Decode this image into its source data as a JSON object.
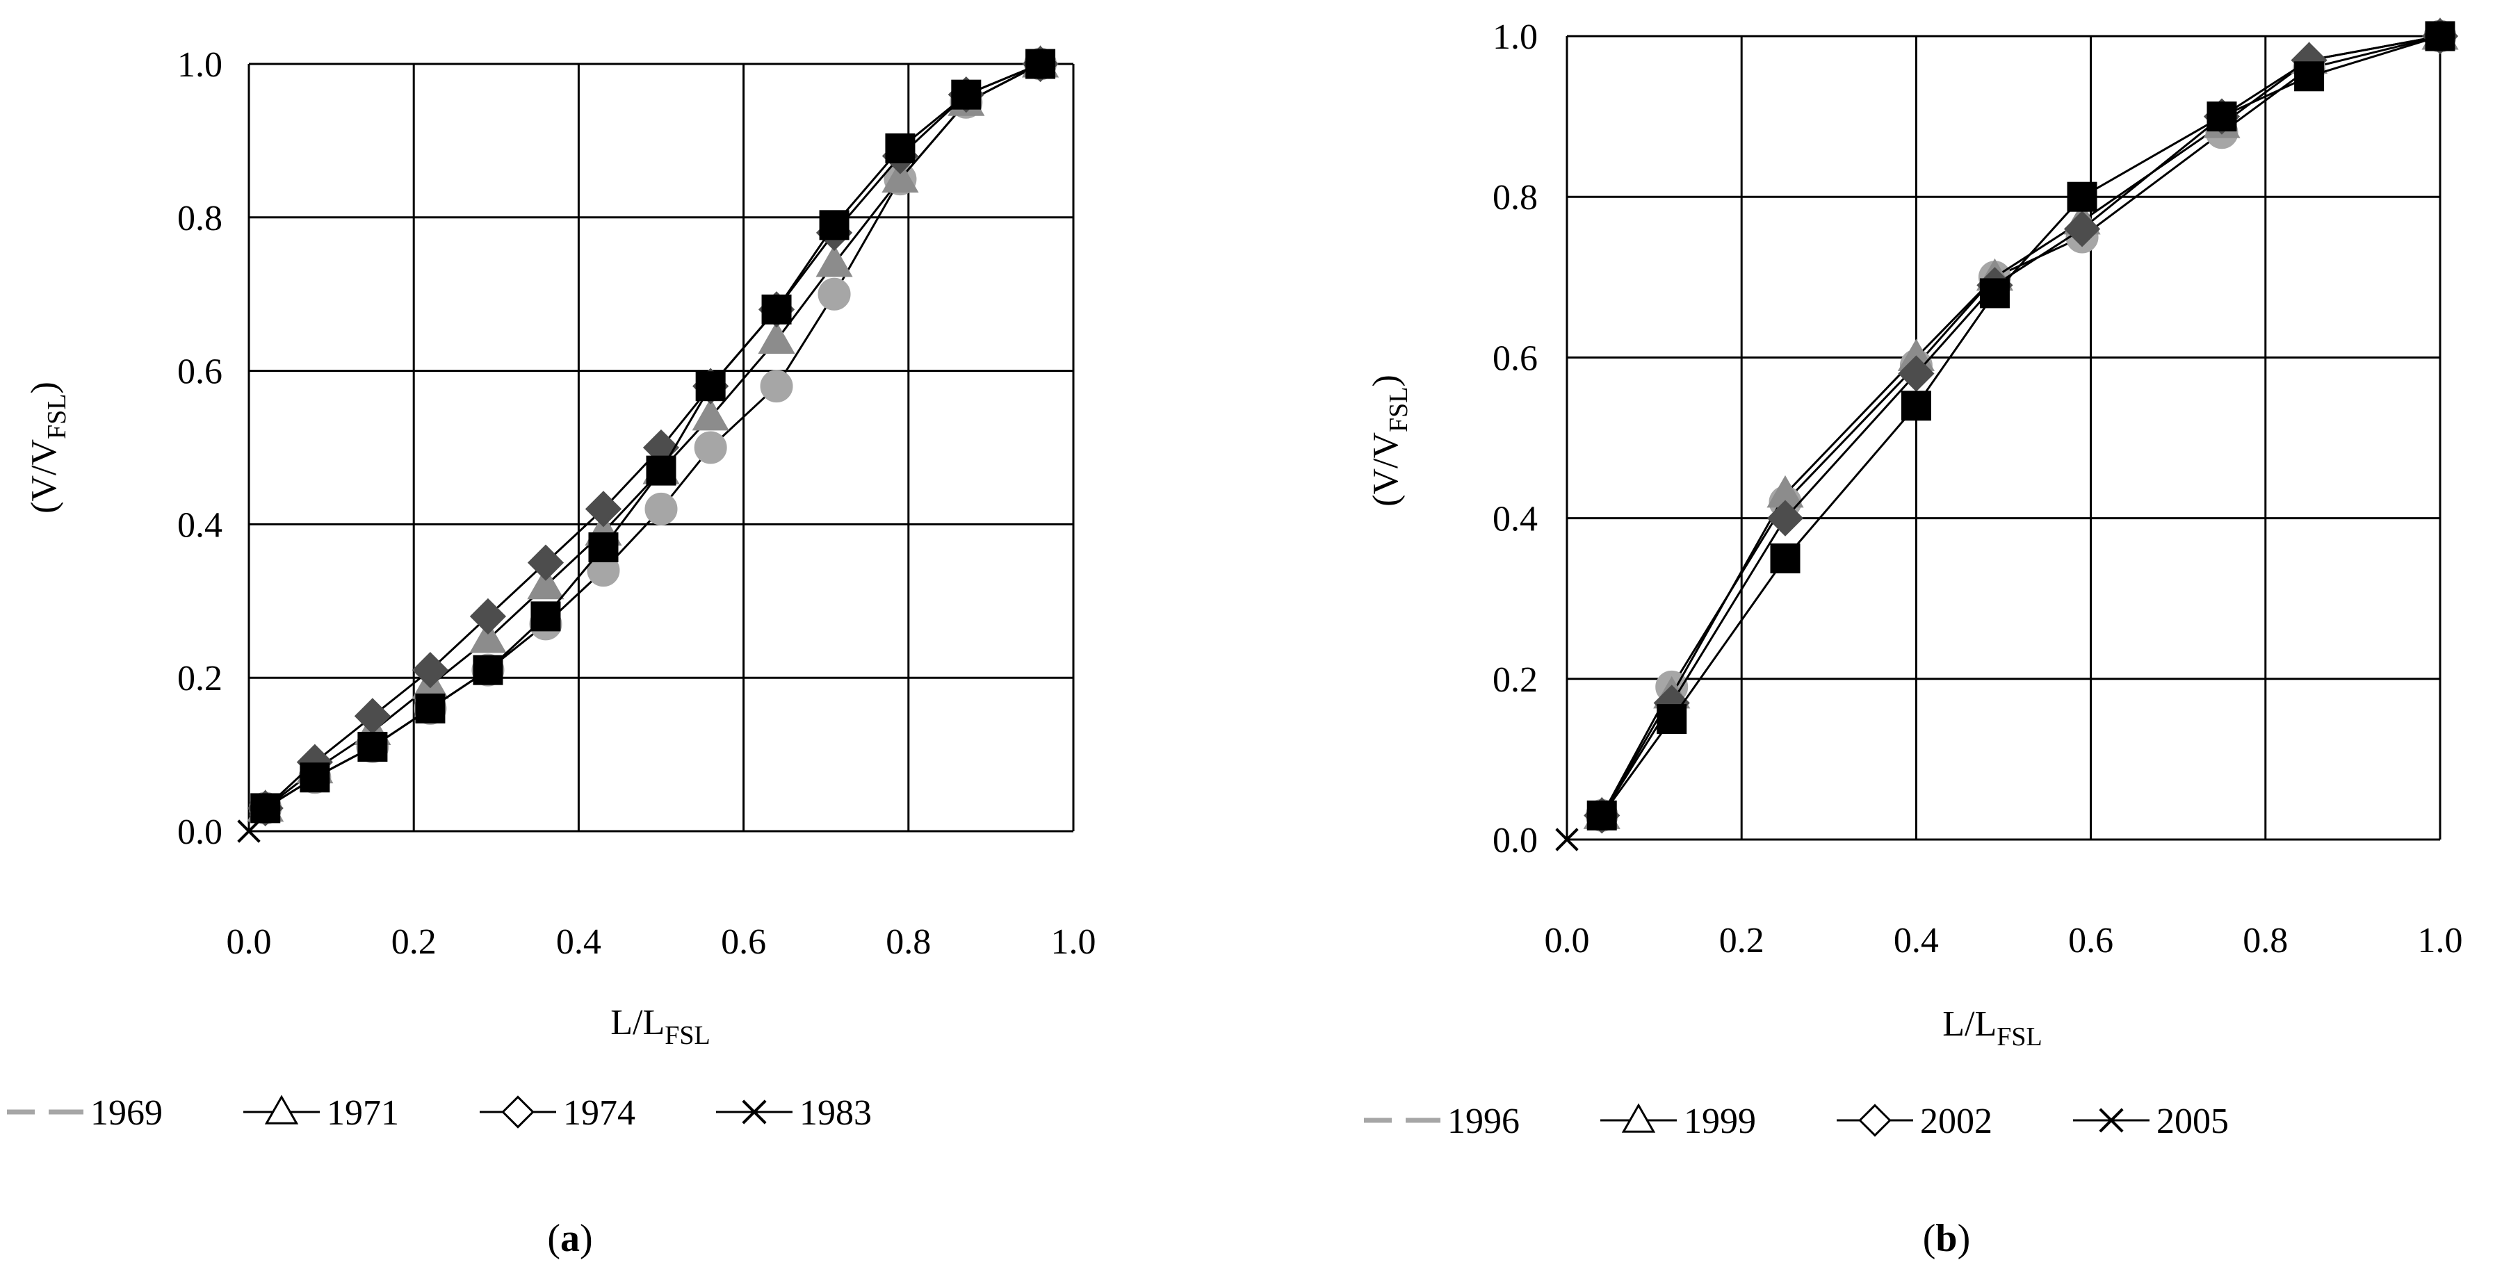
{
  "colors": {
    "axis": "#000000",
    "grid": "#000000",
    "series_1969": "#a6a6a6",
    "series_1971": "#8c8c8c",
    "series_1974": "#4d4d4d",
    "series_1983": "#000000",
    "series_1996": "#a6a6a6",
    "series_1999": "#8c8c8c",
    "series_2002": "#4d4d4d",
    "series_2005": "#000000"
  },
  "chart_data": [
    {
      "type": "line",
      "panel_label_open": "(",
      "panel_label": "a",
      "panel_label_close": ")",
      "xlabel_main": "L/L",
      "xlabel_sub": "FSL",
      "ylabel_main": "(V/V",
      "ylabel_sub": "FSL",
      "ylabel_close": ")",
      "xlim": [
        0,
        1
      ],
      "ylim": [
        0,
        1
      ],
      "x_ticks": [
        "0.0",
        "0.2",
        "0.4",
        "0.6",
        "0.8",
        "1.0"
      ],
      "y_ticks": [
        "0.0",
        "0.2",
        "0.4",
        "0.6",
        "0.8",
        "1.0"
      ],
      "grid": true,
      "legend_position": "bottom",
      "series": [
        {
          "name": "1969",
          "marker": "circle",
          "legend_marker": "dash",
          "points": [
            [
              0.02,
              0.03
            ],
            [
              0.08,
              0.07
            ],
            [
              0.15,
              0.11
            ],
            [
              0.22,
              0.16
            ],
            [
              0.29,
              0.21
            ],
            [
              0.36,
              0.27
            ],
            [
              0.43,
              0.34
            ],
            [
              0.5,
              0.42
            ],
            [
              0.56,
              0.5
            ],
            [
              0.64,
              0.58
            ],
            [
              0.71,
              0.7
            ],
            [
              0.79,
              0.85
            ],
            [
              0.87,
              0.95
            ],
            [
              0.96,
              1.0
            ]
          ]
        },
        {
          "name": "1971",
          "marker": "triangle",
          "legend_marker": "triangle",
          "points": [
            [
              0.02,
              0.03
            ],
            [
              0.08,
              0.08
            ],
            [
              0.15,
              0.13
            ],
            [
              0.22,
              0.19
            ],
            [
              0.29,
              0.25
            ],
            [
              0.36,
              0.32
            ],
            [
              0.43,
              0.39
            ],
            [
              0.5,
              0.47
            ],
            [
              0.56,
              0.54
            ],
            [
              0.64,
              0.64
            ],
            [
              0.71,
              0.74
            ],
            [
              0.79,
              0.85
            ],
            [
              0.87,
              0.95
            ],
            [
              0.96,
              1.0
            ]
          ]
        },
        {
          "name": "1974",
          "marker": "diamond",
          "legend_marker": "diamond",
          "points": [
            [
              0.02,
              0.03
            ],
            [
              0.08,
              0.09
            ],
            [
              0.15,
              0.15
            ],
            [
              0.22,
              0.21
            ],
            [
              0.29,
              0.28
            ],
            [
              0.36,
              0.35
            ],
            [
              0.43,
              0.42
            ],
            [
              0.5,
              0.5
            ],
            [
              0.56,
              0.58
            ],
            [
              0.64,
              0.68
            ],
            [
              0.71,
              0.78
            ],
            [
              0.79,
              0.88
            ],
            [
              0.87,
              0.96
            ],
            [
              0.96,
              1.0
            ]
          ]
        },
        {
          "name": "1983",
          "marker": "square",
          "legend_marker": "cross",
          "points": [
            [
              0.02,
              0.03
            ],
            [
              0.08,
              0.07
            ],
            [
              0.15,
              0.11
            ],
            [
              0.22,
              0.16
            ],
            [
              0.29,
              0.21
            ],
            [
              0.36,
              0.28
            ],
            [
              0.43,
              0.37
            ],
            [
              0.5,
              0.47
            ],
            [
              0.56,
              0.58
            ],
            [
              0.64,
              0.68
            ],
            [
              0.71,
              0.79
            ],
            [
              0.79,
              0.89
            ],
            [
              0.87,
              0.96
            ],
            [
              0.96,
              1.0
            ]
          ]
        }
      ]
    },
    {
      "type": "line",
      "panel_label_open": "(",
      "panel_label": "b",
      "panel_label_close": ")",
      "xlabel_main": "L/L",
      "xlabel_sub": "FSL",
      "ylabel_main": "(V/V",
      "ylabel_sub": "FSL",
      "ylabel_close": ")",
      "xlim": [
        0,
        1
      ],
      "ylim": [
        0,
        1
      ],
      "x_ticks": [
        "0.0",
        "0.2",
        "0.4",
        "0.6",
        "0.8",
        "1.0"
      ],
      "y_ticks": [
        "0.0",
        "0.2",
        "0.4",
        "0.6",
        "0.8",
        "1.0"
      ],
      "grid": true,
      "legend_position": "bottom",
      "series": [
        {
          "name": "1996",
          "marker": "circle",
          "legend_marker": "dash",
          "points": [
            [
              0.04,
              0.03
            ],
            [
              0.12,
              0.19
            ],
            [
              0.25,
              0.42
            ],
            [
              0.4,
              0.59
            ],
            [
              0.49,
              0.7
            ],
            [
              0.59,
              0.75
            ],
            [
              0.75,
              0.88
            ],
            [
              0.85,
              0.96
            ],
            [
              1.0,
              1.0
            ]
          ]
        },
        {
          "name": "1999",
          "marker": "triangle",
          "legend_marker": "triangle",
          "points": [
            [
              0.04,
              0.03
            ],
            [
              0.12,
              0.18
            ],
            [
              0.25,
              0.43
            ],
            [
              0.4,
              0.6
            ],
            [
              0.49,
              0.7
            ],
            [
              0.59,
              0.77
            ],
            [
              0.75,
              0.89
            ],
            [
              0.85,
              0.97
            ],
            [
              1.0,
              1.0
            ]
          ]
        },
        {
          "name": "2002",
          "marker": "diamond",
          "legend_marker": "diamond",
          "points": [
            [
              0.04,
              0.03
            ],
            [
              0.12,
              0.17
            ],
            [
              0.25,
              0.4
            ],
            [
              0.4,
              0.58
            ],
            [
              0.49,
              0.69
            ],
            [
              0.59,
              0.76
            ],
            [
              0.75,
              0.9
            ],
            [
              0.85,
              0.97
            ],
            [
              1.0,
              1.0
            ]
          ]
        },
        {
          "name": "2005",
          "marker": "square",
          "legend_marker": "cross",
          "points": [
            [
              0.04,
              0.03
            ],
            [
              0.12,
              0.15
            ],
            [
              0.25,
              0.35
            ],
            [
              0.4,
              0.54
            ],
            [
              0.49,
              0.68
            ],
            [
              0.59,
              0.8
            ],
            [
              0.75,
              0.9
            ],
            [
              0.85,
              0.95
            ],
            [
              1.0,
              1.0
            ]
          ]
        }
      ]
    }
  ]
}
